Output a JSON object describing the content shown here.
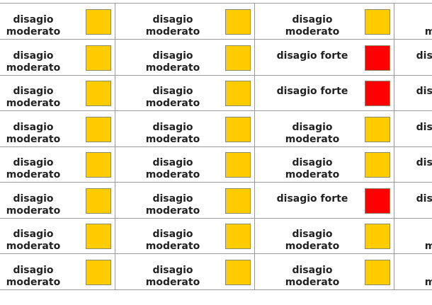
{
  "table": {
    "rows": [
      [
        {
          "label": "disagio moderato",
          "color": "#ffcc00"
        },
        {
          "label": "disagio moderato",
          "color": "#ffcc00"
        },
        {
          "label": "disagio moderato",
          "color": "#ffcc00"
        },
        {
          "label": "disagio moderato",
          "color": "#ffcc00"
        }
      ],
      [
        {
          "label": "disagio moderato",
          "color": "#ffcc00"
        },
        {
          "label": "disagio moderato",
          "color": "#ffcc00"
        },
        {
          "label": "disagio forte",
          "color": "#ff0000"
        },
        {
          "label": "disagio forte",
          "color": "#ff0000"
        }
      ],
      [
        {
          "label": "disagio moderato",
          "color": "#ffcc00"
        },
        {
          "label": "disagio moderato",
          "color": "#ffcc00"
        },
        {
          "label": "disagio forte",
          "color": "#ff0000"
        },
        {
          "label": "disagio forte",
          "color": "#ff0000"
        }
      ],
      [
        {
          "label": "disagio moderato",
          "color": "#ffcc00"
        },
        {
          "label": "disagio moderato",
          "color": "#ffcc00"
        },
        {
          "label": "disagio moderato",
          "color": "#ffcc00"
        },
        {
          "label": "disagio forte",
          "color": "#ff0000"
        }
      ],
      [
        {
          "label": "disagio moderato",
          "color": "#ffcc00"
        },
        {
          "label": "disagio moderato",
          "color": "#ffcc00"
        },
        {
          "label": "disagio moderato",
          "color": "#ffcc00"
        },
        {
          "label": "disagio forte",
          "color": "#ff0000"
        }
      ],
      [
        {
          "label": "disagio moderato",
          "color": "#ffcc00"
        },
        {
          "label": "disagio moderato",
          "color": "#ffcc00"
        },
        {
          "label": "disagio forte",
          "color": "#ff0000"
        },
        {
          "label": "disagio forte",
          "color": "#ff0000"
        }
      ],
      [
        {
          "label": "disagio moderato",
          "color": "#ffcc00"
        },
        {
          "label": "disagio moderato",
          "color": "#ffcc00"
        },
        {
          "label": "disagio moderato",
          "color": "#ffcc00"
        },
        {
          "label": "disagio moderato",
          "color": "#ffcc00"
        }
      ],
      [
        {
          "label": "disagio moderato",
          "color": "#ffcc00"
        },
        {
          "label": "disagio moderato",
          "color": "#ffcc00"
        },
        {
          "label": "disagio moderato",
          "color": "#ffcc00"
        },
        {
          "label": "disagio moderato",
          "color": "#ffcc00"
        }
      ]
    ]
  }
}
